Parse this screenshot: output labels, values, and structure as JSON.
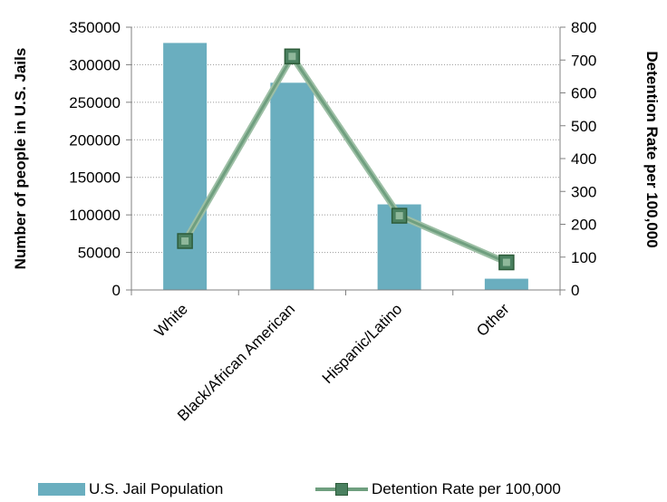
{
  "chart_data": {
    "type": "bar+line",
    "categories": [
      "White",
      "Black/African American",
      "Hispanic/Latino",
      "Other"
    ],
    "series": [
      {
        "name": "U.S. Jail Population",
        "type": "bar",
        "axis": "left",
        "values": [
          329000,
          276000,
          114000,
          15000
        ],
        "color": "#6aaebf"
      },
      {
        "name": "Detention Rate per 100,000",
        "type": "line",
        "axis": "right",
        "values": [
          149,
          711,
          226,
          84
        ],
        "color": "#6f9f7f",
        "marker_color": "#4a8060"
      }
    ],
    "y_left": {
      "label": "Number of people in U.S. Jails",
      "lim": [
        0,
        350000
      ],
      "ticks": [
        "0",
        "50000",
        "100000",
        "150000",
        "200000",
        "250000",
        "300000",
        "350000"
      ]
    },
    "y_right": {
      "label": "Detention Rate per 100,000",
      "lim": [
        0,
        800
      ],
      "ticks": [
        "0",
        "100",
        "200",
        "300",
        "400",
        "500",
        "600",
        "700",
        "800"
      ]
    },
    "grid": "horizontal dotted",
    "legend_position": "bottom"
  }
}
